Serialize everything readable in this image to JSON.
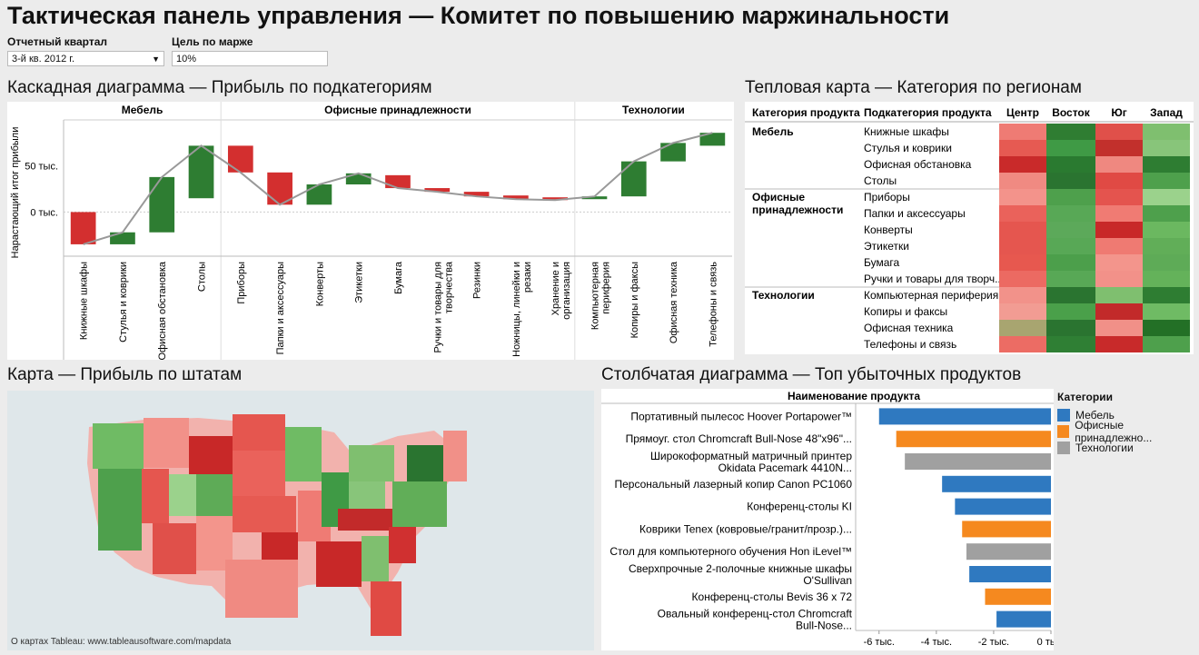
{
  "title": "Тактическая панель управления — Комитет по повышению маржинальности",
  "filters": {
    "quarter_label": "Отчетный квартал",
    "quarter_value": "3-й кв. 2012 г.",
    "margin_label": "Цель по марже",
    "margin_value": "10%"
  },
  "colors": {
    "positive": "#2e7d32",
    "negative": "#d32f2f",
    "furniture": "#2f79c0",
    "office": "#f5891f",
    "tech": "#a0a0a0",
    "connector": "#999999"
  },
  "waterfall": {
    "title": "Каскадная диаграмма — Прибыль по подкатегориям",
    "y_axis_label": "Нарастающий итог прибыли",
    "y_ticks": [
      "50 тыс.",
      "0 тыс."
    ]
  },
  "heatmap": {
    "title": "Тепловая карта — Категория по регионам",
    "headers": [
      "Категория продукта",
      "Подкатегория продукта",
      "Центр",
      "Восток",
      "Юг",
      "Запад"
    ],
    "groups": [
      {
        "category": "Мебель",
        "rows": [
          {
            "sub": "Книжные шкафы",
            "cells": [
              "#ef7b74",
              "#2f7d32",
              "#e0504a",
              "#7fbf6f"
            ]
          },
          {
            "sub": "Стулья и коврики",
            "cells": [
              "#e65a52",
              "#3f9a45",
              "#c2302c",
              "#88c57a"
            ]
          },
          {
            "sub": "Офисная обстановка",
            "cells": [
              "#c92a2a",
              "#2a7a30",
              "#ef8880",
              "#2e7d32"
            ]
          },
          {
            "sub": "Столы",
            "cells": [
              "#f08a82",
              "#2a7430",
              "#e04a44",
              "#4ea04c"
            ]
          }
        ]
      },
      {
        "category": "Офисные принадлежности",
        "rows": [
          {
            "sub": "Приборы",
            "cells": [
              "#f3938b",
              "#4ea04c",
              "#e4544e",
              "#9bd28c"
            ]
          },
          {
            "sub": "Папки и аксессуары",
            "cells": [
              "#ea625b",
              "#58a856",
              "#f07b73",
              "#4ea04c"
            ]
          },
          {
            "sub": "Конверты",
            "cells": [
              "#e5564f",
              "#5ca95a",
              "#c82828",
              "#6bb860"
            ]
          },
          {
            "sub": "Этикетки",
            "cells": [
              "#e5564f",
              "#58a856",
              "#ef7a72",
              "#61ae58"
            ]
          },
          {
            "sub": "Бумага",
            "cells": [
              "#e7584f",
              "#4c9f4b",
              "#f3958c",
              "#5eab57"
            ]
          },
          {
            "sub": "Ручки и товары для творч...",
            "cells": [
              "#ec6a62",
              "#58a856",
              "#f29189",
              "#64b25a"
            ]
          }
        ]
      },
      {
        "category": "Технологии",
        "rows": [
          {
            "sub": "Компьютерная периферия",
            "cells": [
              "#f2928a",
              "#2a7430",
              "#7fbf6f",
              "#2e7d32"
            ]
          },
          {
            "sub": "Копиры и факсы",
            "cells": [
              "#f29c93",
              "#4aa04a",
              "#c22a2a",
              "#6fbb64"
            ]
          },
          {
            "sub": "Офисная техника",
            "cells": [
              "#a8a570",
              "#2a7430",
              "#f19088",
              "#237026"
            ]
          },
          {
            "sub": "Телефоны и связь",
            "cells": [
              "#ec6c64",
              "#2f7f34",
              "#c82a2a",
              "#4ea04c"
            ]
          }
        ]
      }
    ]
  },
  "map": {
    "title": "Карта — Прибыль по штатам",
    "credit": "О картах Tableau: www.tableausoftware.com/mapdata"
  },
  "bar": {
    "title": "Столбчатая диаграмма — Топ убыточных продуктов",
    "column_header": "Наименование продукта",
    "legend_title": "Категории",
    "legend": [
      {
        "label": "Мебель",
        "color": "#2f79c0"
      },
      {
        "label": "Офисные принадлежно...",
        "color": "#f5891f"
      },
      {
        "label": "Технологии",
        "color": "#a0a0a0"
      }
    ],
    "x_ticks": [
      "-6 тыс.",
      "-4 тыс.",
      "-2 тыс.",
      "0 тыс."
    ]
  },
  "chart_data": [
    {
      "type": "bar",
      "title": "Каскадная диаграмма — Прибыль по подкатегориям",
      "ylabel": "Нарастающий итог прибыли",
      "groups": [
        {
          "name": "Мебель",
          "categories": [
            "Книжные шкафы",
            "Стулья и коврики",
            "Офисная обстановка",
            "Столы"
          ]
        },
        {
          "name": "Офисные принадлежности",
          "categories": [
            "Приборы",
            "Папки и аксессуары",
            "Конверты",
            "Этикетки",
            "Бумага",
            "Ручки и товары для творчества",
            "Резинки",
            "Ножницы, линейки и резаки",
            "Хранение и организация"
          ]
        },
        {
          "name": "Технологии",
          "categories": [
            "Компьютерная периферия",
            "Копиры и факсы",
            "Офисная техника",
            "Телефоны и связь"
          ]
        }
      ],
      "categories": [
        "Книжные шкафы",
        "Стулья и коврики",
        "Офисная обстановка",
        "Столы",
        "Приборы",
        "Папки и аксессуары",
        "Конверты",
        "Этикетки",
        "Бумага",
        "Ручки и товары для творчества",
        "Резинки",
        "Ножницы, линейки и резаки",
        "Хранение и организация",
        "Компьютерная периферия",
        "Копиры и факсы",
        "Офисная техника",
        "Телефоны и связь"
      ],
      "start": [
        0,
        -35,
        -22,
        15,
        72,
        43,
        8,
        30,
        40,
        26,
        22,
        18,
        16,
        14,
        17,
        55,
        72
      ],
      "end": [
        -35,
        -22,
        38,
        72,
        43,
        8,
        30,
        42,
        26,
        22,
        17,
        14,
        13,
        17,
        55,
        75,
        86
      ],
      "y_ticks": [
        0,
        50
      ],
      "ylim": [
        -40,
        100
      ]
    },
    {
      "type": "bar",
      "orientation": "horizontal",
      "title": "Столбчатая диаграмма — Топ убыточных продуктов",
      "categories": [
        "Портативный пылесос Hoover Portapower™",
        "Прямоуг. стол Chromcraft Bull-Nose 48\"x96\"...",
        "Широкоформатный матричный принтер Okidata Pacemark 4410N...",
        "Персональный лазерный копир Canon PC1060",
        "Конференц-столы KI",
        "Коврики Tenex (ковровые/гранит/прозр.)...",
        "Стол для компьютерного обучения Hon iLevel™",
        "Сверхпрочные 2-полочные книжные шкафы O'Sullivan",
        "Конференц-столы Bevis 36 x 72",
        "Овальный конференц-стол Chromcraft Bull-Nose..."
      ],
      "values": [
        -6000,
        -5400,
        -5100,
        -3800,
        -3350,
        -3100,
        -2950,
        -2850,
        -2300,
        -1900
      ],
      "series_of": [
        "Мебель",
        "Офисные принадлежно...",
        "Технологии",
        "Мебель",
        "Мебель",
        "Офисные принадлежно...",
        "Технологии",
        "Мебель",
        "Офисные принадлежно...",
        "Мебель"
      ],
      "x_ticks": [
        -6000,
        -4000,
        -2000,
        0
      ],
      "xlim": [
        -6500,
        0
      ]
    }
  ]
}
